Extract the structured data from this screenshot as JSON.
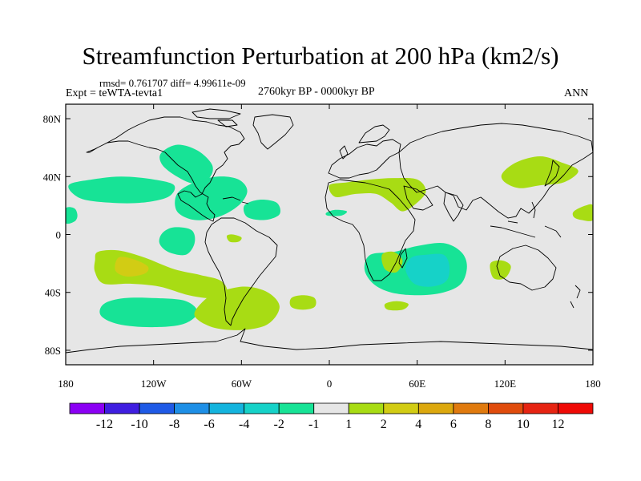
{
  "chart_data": {
    "type": "heatmap",
    "title": "Streamfunction Perturbation at 200 hPa (km2/s)",
    "stats_text": "rmsd= 0.761707 diff= 4.99611e-09",
    "experiment_text": "Expt = teWTA-tevta1",
    "period_text": "2760kyr BP - 0000kyr BP",
    "season_text": "ANN",
    "xlim": [
      -180,
      180
    ],
    "ylim": [
      -90,
      90
    ],
    "x_ticks": [
      {
        "value": -180,
        "label": "180"
      },
      {
        "value": -120,
        "label": "120W"
      },
      {
        "value": -60,
        "label": "60W"
      },
      {
        "value": 0,
        "label": "0"
      },
      {
        "value": 60,
        "label": "60E"
      },
      {
        "value": 120,
        "label": "120E"
      },
      {
        "value": 180,
        "label": "180"
      }
    ],
    "y_ticks": [
      {
        "value": 80,
        "label": "80N"
      },
      {
        "value": 40,
        "label": "40N"
      },
      {
        "value": 0,
        "label": "0"
      },
      {
        "value": -40,
        "label": "40S"
      },
      {
        "value": -80,
        "label": "80S"
      }
    ],
    "colorbar": {
      "boundaries": [
        -12,
        -10,
        -8,
        -6,
        -4,
        -2,
        -1,
        1,
        2,
        4,
        6,
        8,
        10,
        12
      ],
      "labels": [
        "-12",
        "-10",
        "-8",
        "-6",
        "-4",
        "-2",
        "-1",
        "1",
        "2",
        "4",
        "6",
        "8",
        "10",
        "12"
      ],
      "colors": [
        "#8b00f4",
        "#3f1ee0",
        "#1f5ae6",
        "#1e8fe6",
        "#14b4de",
        "#16d2c8",
        "#17e396",
        "#e6e6e6",
        "#a8dc14",
        "#d2cc14",
        "#dca80e",
        "#e07a0e",
        "#e04c0c",
        "#e62412",
        "#ef0a06"
      ]
    },
    "anomalies": [
      {
        "name": "north-atlantic-west",
        "bin": "-2 to -1",
        "value": -1.5,
        "lon_center": -97,
        "lat_center": 46
      },
      {
        "name": "north-pacific-east",
        "bin": "-2 to -1",
        "value": -1.5,
        "lon_center": -140,
        "lat_center": 30
      },
      {
        "name": "gulf-of-mexico",
        "bin": "-2 to -1",
        "value": -1.5,
        "lon_center": -80,
        "lat_center": 22
      },
      {
        "name": "central-atlantic",
        "bin": "-2 to -1",
        "value": -1.5,
        "lon_center": -47,
        "lat_center": 17
      },
      {
        "name": "west-pacific-dateline",
        "bin": "-2 to -1",
        "value": -1.5,
        "lon_center": -176,
        "lat_center": 13
      },
      {
        "name": "east-pacific-small",
        "bin": "-2 to -1",
        "value": -1.5,
        "lon_center": -102,
        "lat_center": -5
      },
      {
        "name": "equatorial-east-pacific-dot",
        "bin": "1 to 2",
        "value": 1.5,
        "lon_center": -65,
        "lat_center": -3
      },
      {
        "name": "south-pacific-band",
        "bin": "1 to 2",
        "value": 1.5,
        "lon_center": -105,
        "lat_center": -30
      },
      {
        "name": "south-pacific-core",
        "bin": "2 to 4",
        "value": 3,
        "lon_center": -133,
        "lat_center": -23
      },
      {
        "name": "south-pacific-southern",
        "bin": "-2 to -1",
        "value": -1.5,
        "lon_center": -117,
        "lat_center": -55
      },
      {
        "name": "south-atlantic-patagonia",
        "bin": "1 to 2",
        "value": 1.5,
        "lon_center": -62,
        "lat_center": -55
      },
      {
        "name": "south-atlantic-small",
        "bin": "1 to 2",
        "value": 1.5,
        "lon_center": -18,
        "lat_center": -47
      },
      {
        "name": "north-africa-middle-east",
        "bin": "1 to 2",
        "value": 1.5,
        "lon_center": 40,
        "lat_center": 29
      },
      {
        "name": "north-africa-west-small",
        "bin": "-2 to -1",
        "value": -1.5,
        "lon_center": 4,
        "lat_center": 15
      },
      {
        "name": "south-indian-ocean",
        "bin": "-2 to -1",
        "value": -1.5,
        "lon_center": 62,
        "lat_center": -27
      },
      {
        "name": "south-indian-ocean-core",
        "bin": "-4 to -2",
        "value": -3,
        "lon_center": 68,
        "lat_center": -27
      },
      {
        "name": "madagascar-ridge",
        "bin": "1 to 2",
        "value": 1.5,
        "lon_center": 42,
        "lat_center": -21
      },
      {
        "name": "southern-indian-small",
        "bin": "1 to 2",
        "value": 1.5,
        "lon_center": 45,
        "lat_center": -50
      },
      {
        "name": "australia-west",
        "bin": "1 to 2",
        "value": 1.5,
        "lon_center": 118,
        "lat_center": -26
      },
      {
        "name": "japan-north-pacific",
        "bin": "1 to 2",
        "value": 1.5,
        "lon_center": 145,
        "lat_center": 44
      },
      {
        "name": "central-pacific-dateline",
        "bin": "1 to 2",
        "value": 1.5,
        "lon_center": 176,
        "lat_center": 15
      }
    ]
  }
}
